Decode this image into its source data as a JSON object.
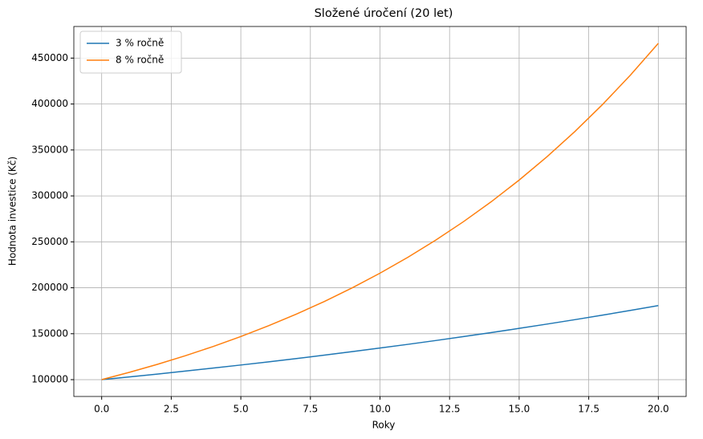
{
  "chart_data": {
    "type": "line",
    "title": "Složené úročení (20 let)",
    "x_label": "Roky",
    "y_label": "Hodnota investice (Kč)",
    "x": [
      0,
      1,
      2,
      3,
      4,
      5,
      6,
      7,
      8,
      9,
      10,
      11,
      12,
      13,
      14,
      15,
      16,
      17,
      18,
      19,
      20
    ],
    "series": [
      {
        "name": "3 % ročně",
        "color": "#1f77b4",
        "values": [
          100000,
          103000,
          106090,
          109273,
          112551,
          115927,
          119405,
          122987,
          126677,
          130477,
          134392,
          138423,
          142576,
          146853,
          151259,
          155797,
          160471,
          165285,
          170243,
          175351,
          180611
        ]
      },
      {
        "name": "8 % ročně",
        "color": "#ff7f0e",
        "values": [
          100000,
          108000,
          116640,
          125971,
          136049,
          146933,
          158687,
          171382,
          185093,
          199900,
          215892,
          233164,
          251817,
          271962,
          293719,
          317217,
          342594,
          370002,
          399602,
          431570,
          466096
        ]
      }
    ],
    "xlim": [
      -1,
      21
    ],
    "ylim": [
      81695,
      484401
    ],
    "xticks": [
      {
        "value": 0,
        "label": "0.0"
      },
      {
        "value": 2.5,
        "label": "2.5"
      },
      {
        "value": 5,
        "label": "5.0"
      },
      {
        "value": 7.5,
        "label": "7.5"
      },
      {
        "value": 10,
        "label": "10.0"
      },
      {
        "value": 12.5,
        "label": "12.5"
      },
      {
        "value": 15,
        "label": "15.0"
      },
      {
        "value": 17.5,
        "label": "17.5"
      },
      {
        "value": 20,
        "label": "20.0"
      }
    ],
    "yticks": [
      100000,
      150000,
      200000,
      250000,
      300000,
      350000,
      400000,
      450000
    ],
    "grid": true,
    "legend": "upper-left"
  }
}
